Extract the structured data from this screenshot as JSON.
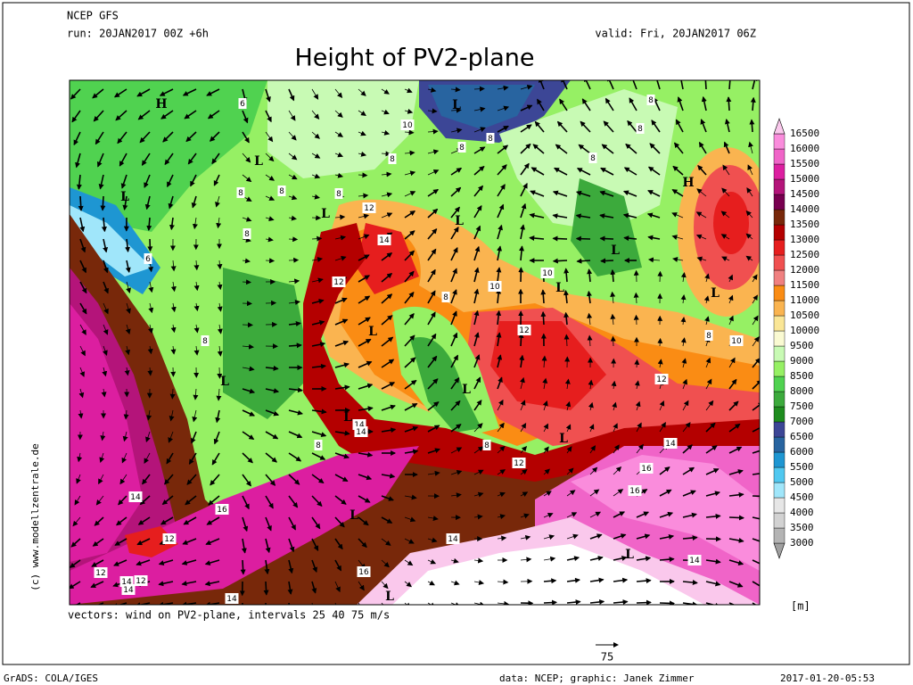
{
  "header": {
    "model": "NCEP GFS",
    "run": "run: 20JAN2017 00Z +6h",
    "valid": "valid: Fri, 20JAN2017 06Z",
    "title": "Height of PV2-plane"
  },
  "colorbar": {
    "ticks": [
      3000,
      3500,
      4000,
      4500,
      5000,
      5500,
      6000,
      6500,
      7000,
      7500,
      8000,
      8500,
      9000,
      9500,
      10000,
      10500,
      11000,
      11500,
      12000,
      12500,
      13000,
      13500,
      14000,
      14500,
      15000,
      15500,
      16000,
      16500
    ],
    "colors": [
      "#a0a0a0",
      "#b4b4b4",
      "#d2d2d2",
      "#e6e6e6",
      "#a0e6fa",
      "#50c8f0",
      "#1e96d2",
      "#2864a0",
      "#3c4696",
      "#1e8c1e",
      "#3caa3c",
      "#50d250",
      "#96f064",
      "#c8fab4",
      "#fafad2",
      "#fae696",
      "#fab450",
      "#fa8c14",
      "#f08080",
      "#f05050",
      "#e61e1e",
      "#b40000",
      "#78280a",
      "#780050",
      "#b4147a",
      "#dc1ea0",
      "#f064c8",
      "#fa8cdc",
      "#fac8ec"
    ],
    "unit": "[m]"
  },
  "map": {
    "labels": [
      "H",
      "L",
      "L",
      "L",
      "L",
      "L",
      "L",
      "L",
      "L",
      "L",
      "L",
      "L",
      "L",
      "L",
      "L",
      "L",
      "L",
      "H",
      "6",
      "6",
      "8",
      "8",
      "8",
      "8",
      "8",
      "10",
      "10",
      "10",
      "10",
      "12",
      "12",
      "12",
      "12",
      "12",
      "12",
      "14",
      "14",
      "14",
      "14",
      "14",
      "14",
      "14",
      "14",
      "16",
      "16",
      "16",
      "16",
      "8",
      "8",
      "8",
      "8",
      "8",
      "8",
      "8",
      "8",
      "8",
      "8",
      "12",
      "14",
      "12",
      "14"
    ]
  },
  "vectors": {
    "caption": "vectors: wind on PV2-plane, intervals 25 40 75 m/s",
    "key": "75"
  },
  "side": "(c) www.modellzentrale.de",
  "footer": {
    "left": "GrADS: COLA/IGES",
    "center": "data: NCEP; graphic: Janek Zimmer",
    "right": "2017-01-20-05:53"
  }
}
